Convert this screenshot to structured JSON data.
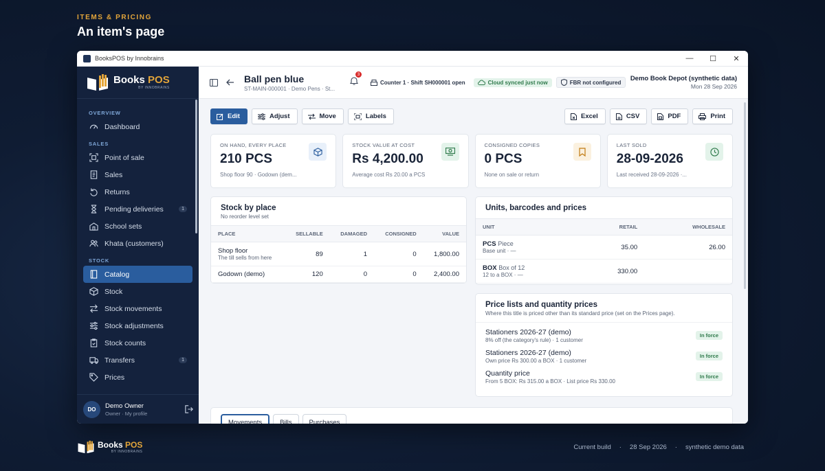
{
  "page": {
    "eyebrow": "ITEMS & PRICING",
    "title": "An item's page"
  },
  "window": {
    "title": "BooksPOS by Innobrains"
  },
  "brand": {
    "name_a": "Books ",
    "name_b": "POS",
    "sub": "BY INNOBRAINS"
  },
  "sidebar": {
    "sections": {
      "overview": "OVERVIEW",
      "sales": "SALES",
      "stock": "STOCK"
    },
    "items": [
      {
        "label": "Dashboard",
        "icon": "dashboard-icon"
      },
      {
        "label": "Point of sale",
        "icon": "scan-icon"
      },
      {
        "label": "Sales",
        "icon": "receipt-icon"
      },
      {
        "label": "Returns",
        "icon": "return-icon"
      },
      {
        "label": "Pending deliveries",
        "icon": "hourglass-icon",
        "badge": "1"
      },
      {
        "label": "School sets",
        "icon": "school-icon"
      },
      {
        "label": "Khata (customers)",
        "icon": "people-icon"
      },
      {
        "label": "Catalog",
        "icon": "book-icon"
      },
      {
        "label": "Stock",
        "icon": "box-icon"
      },
      {
        "label": "Stock movements",
        "icon": "arrows-icon"
      },
      {
        "label": "Stock adjustments",
        "icon": "sliders-icon"
      },
      {
        "label": "Stock counts",
        "icon": "clipboard-icon"
      },
      {
        "label": "Transfers",
        "icon": "truck-icon",
        "badge": "1"
      },
      {
        "label": "Prices",
        "icon": "tag-icon"
      }
    ]
  },
  "user": {
    "initials": "DO",
    "name": "Demo Owner",
    "role": "Owner · My profile"
  },
  "topbar": {
    "item_name": "Ball pen blue",
    "item_sub": "ST-MAIN-000001 · Demo Pens · St...",
    "bell_count": "3",
    "counter": "Counter 1 · Shift SH000001 open",
    "sync": "Cloud synced just now",
    "fbr": "FBR not configured",
    "store": "Demo Book Depot (synthetic data)",
    "date": "Mon 28 Sep 2026"
  },
  "actions": {
    "edit": "Edit",
    "adjust": "Adjust",
    "move": "Move",
    "labels": "Labels",
    "excel": "Excel",
    "csv": "CSV",
    "pdf": "PDF",
    "print": "Print"
  },
  "stats": [
    {
      "label": "ON HAND, EVERY PLACE",
      "value": "210 PCS",
      "note": "Shop floor 90 · Godown (dem...",
      "color": "#e8f0fa"
    },
    {
      "label": "STOCK VALUE AT COST",
      "value": "Rs 4,200.00",
      "note": "Average cost Rs 20.00 a PCS",
      "color": "#e3f3ea"
    },
    {
      "label": "CONSIGNED COPIES",
      "value": "0 PCS",
      "note": "None on sale or return",
      "color": "#fbf1df"
    },
    {
      "label": "LAST SOLD",
      "value": "28-09-2026",
      "note": "Last received 28-09-2026 ·...",
      "color": "#e3f3ea"
    }
  ],
  "stock_by_place": {
    "title": "Stock by place",
    "sub": "No reorder level set",
    "headers": [
      "PLACE",
      "SELLABLE",
      "DAMAGED",
      "CONSIGNED",
      "VALUE"
    ],
    "rows": [
      {
        "place": "Shop floor",
        "note": "The till sells from here",
        "sellable": "89",
        "damaged": "1",
        "consigned": "0",
        "value": "1,800.00"
      },
      {
        "place": "Godown (demo)",
        "note": "",
        "sellable": "120",
        "damaged": "0",
        "consigned": "0",
        "value": "2,400.00"
      }
    ]
  },
  "units": {
    "title": "Units, barcodes and prices",
    "headers": [
      "UNIT",
      "RETAIL",
      "WHOLESALE"
    ],
    "rows": [
      {
        "code": "PCS",
        "name": "Piece",
        "sub": "Base unit · —",
        "retail": "35.00",
        "wholesale": "26.00"
      },
      {
        "code": "BOX",
        "name": "Box of 12",
        "sub": "12 to a BOX · —",
        "retail": "330.00",
        "wholesale": ""
      }
    ]
  },
  "price_lists": {
    "title": "Price lists and quantity prices",
    "sub": "Where this title is priced other than its standard price (set on the Prices page).",
    "rows": [
      {
        "name": "Stationers 2026-27 (demo)",
        "desc": "8% off (the category's rule) · 1 customer",
        "status": "In force"
      },
      {
        "name": "Stationers 2026-27 (demo)",
        "desc": "Own price Rs 300.00 a BOX · 1 customer",
        "status": "In force"
      },
      {
        "name": "Quantity price",
        "desc": "From 5 BOX: Rs 315.00 a BOX · List price Rs 330.00",
        "status": "In force"
      }
    ]
  },
  "tabs": [
    "Movements",
    "Bills",
    "Purchases"
  ],
  "footer": {
    "build": "Current build",
    "date": "28 Sep 2026",
    "data": "synthetic demo data",
    "sep": "·"
  }
}
